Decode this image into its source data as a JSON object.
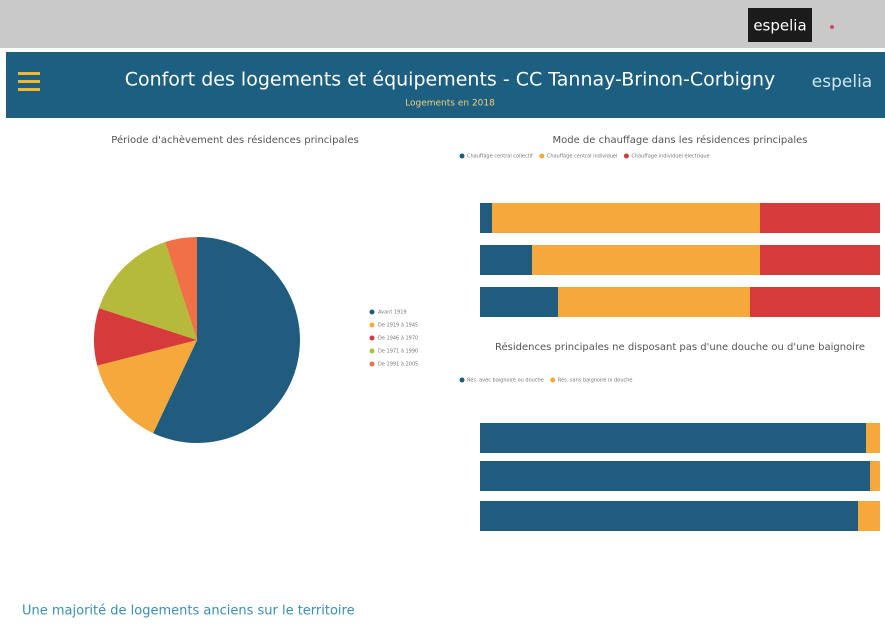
{
  "header": {
    "logo_top": "espelia",
    "title": "Confort des logements et équipements - CC Tannay-Brinon-Corbigny",
    "subtitle": "Logements en 2018",
    "logo_right": "espelia"
  },
  "footer": {
    "text": "Une majorité de logements anciens sur le territoire"
  },
  "chart_data": [
    {
      "type": "pie",
      "title": "Période d'achèvement des résidences principales",
      "categories": [
        "Avant 1919",
        "De 1919 à 1945",
        "De 1946 à 1970",
        "De 1971 à 1990",
        "De 1991 à 2005"
      ],
      "values": [
        57,
        14,
        9,
        15,
        5
      ],
      "colors": [
        "#1f5c7e",
        "#f5a93a",
        "#d63a3a",
        "#b5ba3b",
        "#f07146"
      ],
      "legend": "right"
    },
    {
      "type": "stacked-bar-horizontal",
      "title": "Mode de chauffage dans les résidences principales",
      "categories": [
        null,
        null,
        null
      ],
      "xlim": [
        0,
        100
      ],
      "legend": "top",
      "series": [
        {
          "name": "Chauffage central collectif",
          "color": "#1f5c7e",
          "values": [
            3,
            13,
            19.5
          ]
        },
        {
          "name": "Chauffage central individuel",
          "color": "#f5a93a",
          "values": [
            67,
            57,
            48
          ]
        },
        {
          "name": "Chauffage individuel électrique",
          "color": "#d63a3a",
          "values": [
            30,
            30,
            32.5
          ]
        }
      ]
    },
    {
      "type": "stacked-bar-horizontal",
      "title": "Résidences principales ne disposant pas d'une douche ou d'une baignoire",
      "categories": [
        null,
        null,
        null
      ],
      "xlim": [
        0,
        100
      ],
      "legend": "top",
      "series": [
        {
          "name": "Rés. avec baignoire ou douche",
          "color": "#1f5c7e",
          "values": [
            96.5,
            97.5,
            94.5
          ]
        },
        {
          "name": "Rés. sans baignoire ni douche",
          "color": "#f5a93a",
          "values": [
            3.5,
            2.5,
            5.5
          ]
        }
      ]
    }
  ]
}
